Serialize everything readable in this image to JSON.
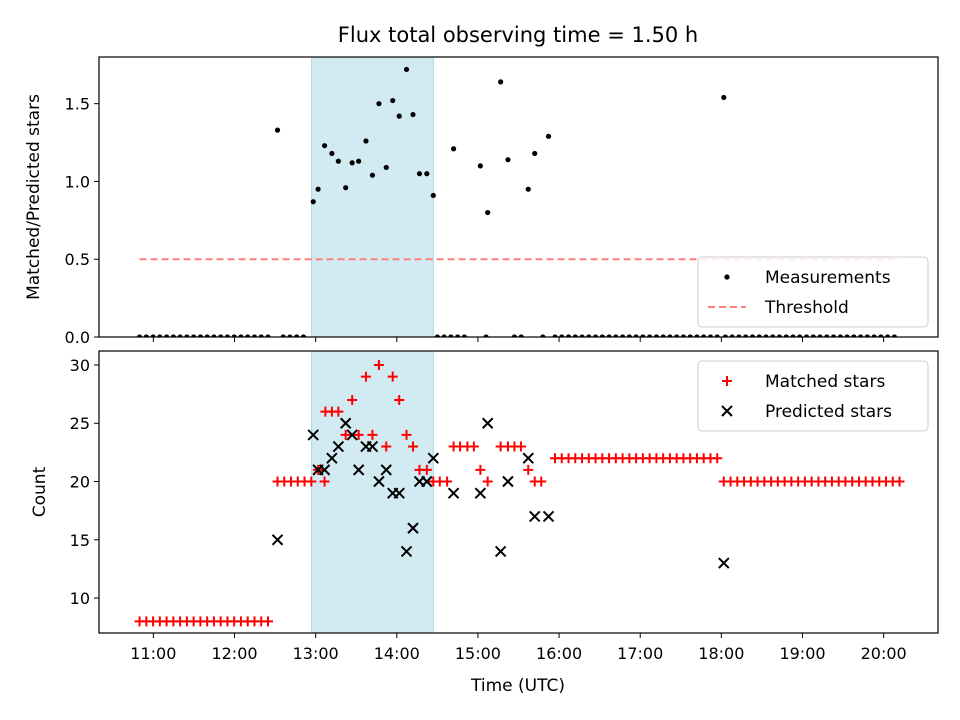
{
  "chart_data": {
    "title": "Flux total observing time = 1.50 h",
    "x_axis": {
      "label": "Time (UTC)",
      "unit": "hours UTC",
      "range": [
        10.33,
        20.67
      ],
      "ticks": [
        {
          "v": 11,
          "label": "11:00"
        },
        {
          "v": 12,
          "label": "12:00"
        },
        {
          "v": 13,
          "label": "13:00"
        },
        {
          "v": 14,
          "label": "14:00"
        },
        {
          "v": 15,
          "label": "15:00"
        },
        {
          "v": 16,
          "label": "16:00"
        },
        {
          "v": 17,
          "label": "17:00"
        },
        {
          "v": 18,
          "label": "18:00"
        },
        {
          "v": 19,
          "label": "19:00"
        },
        {
          "v": 20,
          "label": "20:00"
        }
      ]
    },
    "shaded_span": {
      "from": 12.95,
      "to": 14.45,
      "color": "#add8e6"
    },
    "panels": [
      {
        "type": "scatter",
        "ylabel": "Matched/Predicted stars",
        "ylim": [
          0,
          1.8
        ],
        "yticks": [
          {
            "v": 0,
            "label": "0.0"
          },
          {
            "v": 0.5,
            "label": "0.5"
          },
          {
            "v": 1.0,
            "label": "1.0"
          },
          {
            "v": 1.5,
            "label": "1.5"
          }
        ],
        "legend": {
          "position": "lower right",
          "entries": [
            "Measurements",
            "Threshold"
          ]
        },
        "series": [
          {
            "name": "Measurements",
            "marker": "dot",
            "color": "#000000",
            "zero_runs": [
              [
                10.83,
                12.45,
                0.0833
              ],
              [
                12.6,
                12.9,
                0.0833
              ],
              [
                14.5,
                14.85,
                0.0833
              ],
              [
                15.1,
                15.1,
                0.0833
              ],
              [
                15.45,
                15.55,
                0.0833
              ],
              [
                15.8,
                15.8,
                0.0833
              ],
              [
                15.95,
                17.95,
                0.0833
              ],
              [
                18.05,
                20.2,
                0.0833
              ]
            ],
            "points": [
              [
                12.53,
                1.33
              ],
              [
                12.97,
                0.87
              ],
              [
                13.03,
                0.95
              ],
              [
                13.11,
                1.23
              ],
              [
                13.2,
                1.18
              ],
              [
                13.28,
                1.13
              ],
              [
                13.37,
                0.96
              ],
              [
                13.45,
                1.12
              ],
              [
                13.53,
                1.13
              ],
              [
                13.62,
                1.26
              ],
              [
                13.7,
                1.04
              ],
              [
                13.78,
                1.5
              ],
              [
                13.87,
                1.09
              ],
              [
                13.95,
                1.52
              ],
              [
                14.03,
                1.42
              ],
              [
                14.12,
                1.72
              ],
              [
                14.2,
                1.43
              ],
              [
                14.28,
                1.05
              ],
              [
                14.37,
                1.05
              ],
              [
                14.45,
                0.91
              ],
              [
                14.7,
                1.21
              ],
              [
                15.03,
                1.1
              ],
              [
                15.12,
                0.8
              ],
              [
                15.28,
                1.64
              ],
              [
                15.37,
                1.14
              ],
              [
                15.62,
                0.95
              ],
              [
                15.7,
                1.18
              ],
              [
                15.87,
                1.29
              ],
              [
                18.03,
                1.54
              ]
            ]
          },
          {
            "name": "Threshold",
            "marker": "dashed-line",
            "color": "#ff7f7f",
            "x": [
              10.83,
              20.2
            ],
            "y": [
              0.5,
              0.5
            ]
          }
        ]
      },
      {
        "type": "scatter",
        "ylabel": "Count",
        "ylim": [
          7,
          31.2
        ],
        "yticks": [
          {
            "v": 10,
            "label": "10"
          },
          {
            "v": 15,
            "label": "15"
          },
          {
            "v": 20,
            "label": "20"
          },
          {
            "v": 25,
            "label": "25"
          },
          {
            "v": 30,
            "label": "30"
          }
        ],
        "legend": {
          "position": "upper right",
          "entries": [
            "Matched stars",
            "Predicted stars"
          ]
        },
        "series": [
          {
            "name": "Matched stars",
            "marker": "plus",
            "color": "#ff0000",
            "runs": [
              [
                10.83,
                12.45,
                0.0833,
                8
              ],
              [
                12.53,
                12.95,
                0.0833,
                20
              ],
              [
                15.95,
                17.95,
                0.0833,
                22
              ],
              [
                18.03,
                20.2,
                0.0833,
                20
              ]
            ],
            "points": [
              [
                13.03,
                21
              ],
              [
                13.11,
                20
              ],
              [
                13.12,
                26
              ],
              [
                13.2,
                26
              ],
              [
                13.28,
                26
              ],
              [
                13.37,
                24
              ],
              [
                13.45,
                27
              ],
              [
                13.53,
                24
              ],
              [
                13.62,
                29
              ],
              [
                13.7,
                24
              ],
              [
                13.78,
                30
              ],
              [
                13.87,
                23
              ],
              [
                13.95,
                29
              ],
              [
                14.03,
                27
              ],
              [
                14.12,
                24
              ],
              [
                14.2,
                23
              ],
              [
                14.28,
                21
              ],
              [
                14.37,
                21
              ],
              [
                14.45,
                20
              ],
              [
                14.53,
                20
              ],
              [
                14.62,
                20
              ],
              [
                14.7,
                23
              ],
              [
                14.78,
                23
              ],
              [
                14.87,
                23
              ],
              [
                14.95,
                23
              ],
              [
                15.03,
                21
              ],
              [
                15.12,
                20
              ],
              [
                15.28,
                23
              ],
              [
                15.37,
                23
              ],
              [
                15.45,
                23
              ],
              [
                15.53,
                23
              ],
              [
                15.62,
                21
              ],
              [
                15.7,
                20
              ],
              [
                15.78,
                20
              ]
            ]
          },
          {
            "name": "Predicted stars",
            "marker": "x",
            "color": "#000000",
            "points": [
              [
                12.53,
                15
              ],
              [
                12.97,
                24
              ],
              [
                13.03,
                21
              ],
              [
                13.11,
                21
              ],
              [
                13.2,
                22
              ],
              [
                13.28,
                23
              ],
              [
                13.37,
                25
              ],
              [
                13.45,
                24
              ],
              [
                13.53,
                21
              ],
              [
                13.62,
                23
              ],
              [
                13.7,
                23
              ],
              [
                13.78,
                20
              ],
              [
                13.87,
                21
              ],
              [
                13.95,
                19
              ],
              [
                14.03,
                19
              ],
              [
                14.12,
                14
              ],
              [
                14.2,
                16
              ],
              [
                14.28,
                20
              ],
              [
                14.37,
                20
              ],
              [
                14.45,
                22
              ],
              [
                14.7,
                19
              ],
              [
                15.03,
                19
              ],
              [
                15.12,
                25
              ],
              [
                15.28,
                14
              ],
              [
                15.37,
                20
              ],
              [
                15.62,
                22
              ],
              [
                15.7,
                17
              ],
              [
                15.87,
                17
              ],
              [
                18.03,
                13
              ]
            ]
          }
        ]
      }
    ]
  }
}
